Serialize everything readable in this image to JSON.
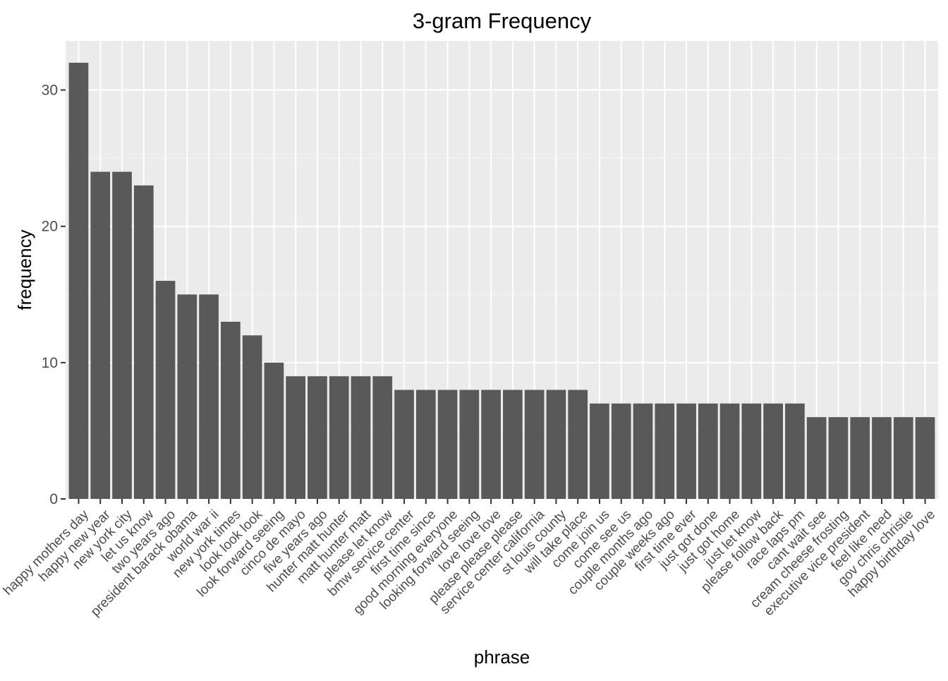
{
  "chart_data": {
    "type": "bar",
    "title": "3-gram Frequency",
    "xlabel": "phrase",
    "ylabel": "frequency",
    "ylim": [
      0,
      33.6
    ],
    "yticks": [
      0,
      10,
      20,
      30
    ],
    "grid": true,
    "colors": {
      "panel": "#EBEBEB",
      "grid_major": "#FFFFFF",
      "grid_minor": "#F5F5F5",
      "bar": "#595959",
      "tick_text": "#4D4D4D",
      "axis_text": "#000000"
    },
    "categories": [
      "happy mothers day",
      "happy new year",
      "new york city",
      "let us know",
      "two years ago",
      "president barack obama",
      "world war ii",
      "new york times",
      "look look look",
      "look forward seeing",
      "cinco de mayo",
      "five years ago",
      "hunter matt hunter",
      "matt hunter matt",
      "please let know",
      "bmw service center",
      "first time since",
      "good morning everyone",
      "looking forward seeing",
      "love love love",
      "please please please",
      "service center california",
      "st louis county",
      "will take place",
      "come join us",
      "come see us",
      "couple months ago",
      "couple weeks ago",
      "first time ever",
      "just got done",
      "just got home",
      "just let know",
      "please follow back",
      "race laps pm",
      "cant wait see",
      "cream cheese frosting",
      "executive vice president",
      "feel like need",
      "gov chris christie",
      "happy birthday love"
    ],
    "values": [
      32,
      24,
      24,
      23,
      16,
      15,
      15,
      13,
      12,
      10,
      9,
      9,
      9,
      9,
      9,
      8,
      8,
      8,
      8,
      8,
      8,
      8,
      8,
      8,
      7,
      7,
      7,
      7,
      7,
      7,
      7,
      7,
      7,
      7,
      6,
      6,
      6,
      6,
      6,
      6
    ]
  }
}
